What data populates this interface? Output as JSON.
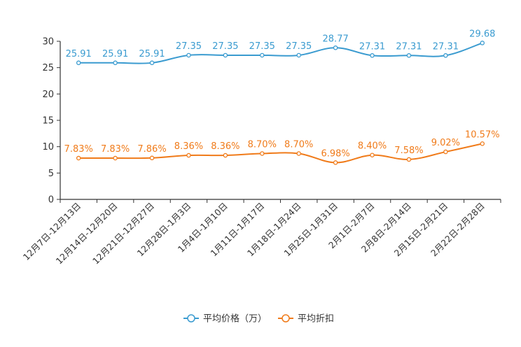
{
  "chart_data": {
    "type": "line",
    "categories": [
      "12月7日-12月13日",
      "12月14日-12月20日",
      "12月21日-12月27日",
      "12月28日-1月3日",
      "1月4日-1月10日",
      "1月11日-1月17日",
      "1月18日-1月24日",
      "1月25日-1月31日",
      "2月1日-2月7日",
      "2月8日-2月14日",
      "2月15日-2月21日",
      "2月22日-2月28日"
    ],
    "series": [
      {
        "name": "平均价格（万）",
        "color": "#3a9bd0",
        "values": [
          25.91,
          25.91,
          25.91,
          27.35,
          27.35,
          27.35,
          27.35,
          28.77,
          27.31,
          27.31,
          27.31,
          29.68
        ],
        "labels": [
          "25.91",
          "25.91",
          "25.91",
          "27.35",
          "27.35",
          "27.35",
          "27.35",
          "28.77",
          "27.31",
          "27.31",
          "27.31",
          "29.68"
        ]
      },
      {
        "name": "平均折扣",
        "color": "#f07b1a",
        "values": [
          7.83,
          7.83,
          7.86,
          8.36,
          8.36,
          8.7,
          8.7,
          6.98,
          8.4,
          7.58,
          9.02,
          10.57
        ],
        "labels": [
          "7.83%",
          "7.83%",
          "7.86%",
          "8.36%",
          "8.36%",
          "8.70%",
          "8.70%",
          "6.98%",
          "8.40%",
          "7.58%",
          "9.02%",
          "10.57%"
        ]
      }
    ],
    "yticks": [
      "0",
      "5",
      "10",
      "15",
      "20",
      "25",
      "30"
    ],
    "ylim": [
      0,
      30
    ],
    "title": "",
    "xlabel": "",
    "ylabel": "",
    "grid": false,
    "legend": "bottom-center"
  }
}
